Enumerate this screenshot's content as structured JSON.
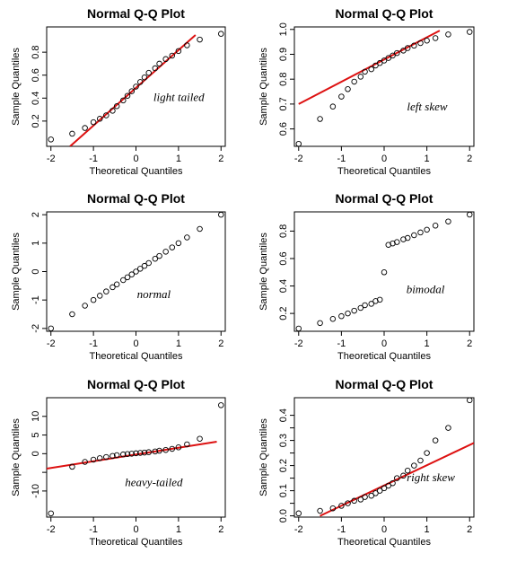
{
  "colors": {
    "reference_line": "#dd1111",
    "points": "#000000"
  },
  "chart_data": [
    {
      "type": "scatter",
      "title": "Normal Q-Q Plot",
      "xlabel": "Theoretical Quantiles",
      "ylabel": "Sample Quantiles",
      "annotation": "light tailed",
      "xlim": [
        -2.1,
        2.1
      ],
      "ylim": [
        -0.02,
        1.02
      ],
      "xticks": [
        -2,
        -1,
        0,
        1,
        2
      ],
      "yticks": [
        0.2,
        0.4,
        0.6,
        0.8
      ],
      "ytick_labels": [
        "0.2",
        "0.4",
        "0.6",
        "0.8"
      ],
      "reference_line": {
        "x": [
          -1.55,
          1.4
        ],
        "y": [
          -0.02,
          0.95
        ]
      },
      "x": [
        -2.0,
        -1.5,
        -1.2,
        -1.0,
        -0.85,
        -0.7,
        -0.55,
        -0.45,
        -0.3,
        -0.2,
        -0.1,
        0.0,
        0.1,
        0.2,
        0.3,
        0.45,
        0.55,
        0.7,
        0.85,
        1.0,
        1.2,
        1.5,
        2.0
      ],
      "y": [
        0.04,
        0.09,
        0.14,
        0.19,
        0.22,
        0.25,
        0.29,
        0.33,
        0.38,
        0.42,
        0.46,
        0.5,
        0.54,
        0.58,
        0.62,
        0.66,
        0.7,
        0.74,
        0.77,
        0.81,
        0.86,
        0.91,
        0.96
      ]
    },
    {
      "type": "scatter",
      "title": "Normal Q-Q Plot",
      "xlabel": "Theoretical Quantiles",
      "ylabel": "Sample Quantiles",
      "annotation": "left skew",
      "xlim": [
        -2.1,
        2.1
      ],
      "ylim": [
        0.53,
        1.01
      ],
      "xticks": [
        -2,
        -1,
        0,
        1,
        2
      ],
      "yticks": [
        0.6,
        0.7,
        0.8,
        0.9,
        1.0
      ],
      "ytick_labels": [
        "0.6",
        "0.7",
        "0.8",
        "0.9",
        "1.0"
      ],
      "reference_line": {
        "x": [
          -2.0,
          1.3
        ],
        "y": [
          0.7,
          0.995
        ]
      },
      "x": [
        -2.0,
        -1.5,
        -1.2,
        -1.0,
        -0.85,
        -0.7,
        -0.55,
        -0.45,
        -0.3,
        -0.2,
        -0.1,
        0.0,
        0.1,
        0.2,
        0.3,
        0.45,
        0.55,
        0.7,
        0.85,
        1.0,
        1.2,
        1.5,
        2.0
      ],
      "y": [
        0.54,
        0.64,
        0.69,
        0.73,
        0.76,
        0.79,
        0.81,
        0.83,
        0.84,
        0.855,
        0.865,
        0.875,
        0.885,
        0.895,
        0.905,
        0.915,
        0.925,
        0.935,
        0.945,
        0.955,
        0.965,
        0.98,
        0.99
      ]
    },
    {
      "type": "scatter",
      "title": "Normal Q-Q Plot",
      "xlabel": "Theoretical Quantiles",
      "ylabel": "Sample Quantiles",
      "annotation": "normal",
      "xlim": [
        -2.1,
        2.1
      ],
      "ylim": [
        -2.1,
        2.1
      ],
      "xticks": [
        -2,
        -1,
        0,
        1,
        2
      ],
      "yticks": [
        -2,
        -1,
        0,
        1,
        2
      ],
      "ytick_labels": [
        "-2",
        "-1",
        "0",
        "1",
        "2"
      ],
      "reference_line": null,
      "x": [
        -2.0,
        -1.5,
        -1.2,
        -1.0,
        -0.85,
        -0.7,
        -0.55,
        -0.45,
        -0.3,
        -0.2,
        -0.1,
        0.0,
        0.1,
        0.2,
        0.3,
        0.45,
        0.55,
        0.7,
        0.85,
        1.0,
        1.2,
        1.5,
        2.0
      ],
      "y": [
        -2.0,
        -1.5,
        -1.2,
        -1.0,
        -0.85,
        -0.7,
        -0.55,
        -0.45,
        -0.3,
        -0.2,
        -0.1,
        0.0,
        0.1,
        0.2,
        0.3,
        0.45,
        0.55,
        0.7,
        0.85,
        1.0,
        1.2,
        1.5,
        2.0
      ]
    },
    {
      "type": "scatter",
      "title": "Normal Q-Q Plot",
      "xlabel": "Theoretical Quantiles",
      "ylabel": "Sample Quantiles",
      "annotation": "bimodal",
      "xlim": [
        -2.1,
        2.1
      ],
      "ylim": [
        0.07,
        0.94
      ],
      "xticks": [
        -2,
        -1,
        0,
        1,
        2
      ],
      "yticks": [
        0.2,
        0.4,
        0.6,
        0.8
      ],
      "ytick_labels": [
        "0.2",
        "0.4",
        "0.6",
        "0.8"
      ],
      "reference_line": null,
      "x": [
        -2.0,
        -1.5,
        -1.2,
        -1.0,
        -0.85,
        -0.7,
        -0.55,
        -0.45,
        -0.3,
        -0.2,
        -0.1,
        0.0,
        0.1,
        0.2,
        0.3,
        0.45,
        0.55,
        0.7,
        0.85,
        1.0,
        1.2,
        1.5,
        2.0
      ],
      "y": [
        0.09,
        0.13,
        0.16,
        0.18,
        0.2,
        0.22,
        0.24,
        0.26,
        0.27,
        0.29,
        0.3,
        0.5,
        0.7,
        0.71,
        0.72,
        0.74,
        0.75,
        0.77,
        0.79,
        0.81,
        0.84,
        0.87,
        0.92
      ]
    },
    {
      "type": "scatter",
      "title": "Normal Q-Q Plot",
      "xlabel": "Theoretical Quantiles",
      "ylabel": "Sample Quantiles",
      "annotation": "heavy-tailed",
      "xlim": [
        -2.1,
        2.1
      ],
      "ylim": [
        -17,
        15
      ],
      "xticks": [
        -2,
        -1,
        0,
        1,
        2
      ],
      "yticks": [
        -10,
        -5,
        0,
        5,
        10
      ],
      "ytick_labels": [
        "-10",
        "",
        "0",
        "5",
        "10"
      ],
      "reference_line": {
        "x": [
          -2.1,
          1.9
        ],
        "y": [
          -4.0,
          3.2
        ]
      },
      "x": [
        -2.0,
        -1.5,
        -1.2,
        -1.0,
        -0.85,
        -0.7,
        -0.55,
        -0.45,
        -0.3,
        -0.2,
        -0.1,
        0.0,
        0.1,
        0.2,
        0.3,
        0.45,
        0.55,
        0.7,
        0.85,
        1.0,
        1.2,
        1.5,
        2.0
      ],
      "y": [
        -16.0,
        -3.5,
        -2.2,
        -1.6,
        -1.2,
        -0.9,
        -0.6,
        -0.4,
        -0.2,
        -0.1,
        0.0,
        0.1,
        0.2,
        0.3,
        0.4,
        0.6,
        0.8,
        1.0,
        1.3,
        1.7,
        2.5,
        4.0,
        13.0
      ]
    },
    {
      "type": "scatter",
      "title": "Normal Q-Q Plot",
      "xlabel": "Theoretical Quantiles",
      "ylabel": "Sample Quantiles",
      "annotation": "right skew",
      "xlim": [
        -2.1,
        2.1
      ],
      "ylim": [
        -0.005,
        0.47
      ],
      "xticks": [
        -2,
        -1,
        0,
        1,
        2
      ],
      "yticks": [
        0.0,
        0.05,
        0.1,
        0.15,
        0.2,
        0.25,
        0.3,
        0.35,
        0.4
      ],
      "ytick_labels": [
        "0.0",
        "",
        "0.1",
        "",
        "0.2",
        "",
        "0.3",
        "",
        "0.4"
      ],
      "reference_line": {
        "x": [
          -1.5,
          2.1
        ],
        "y": [
          0.0,
          0.29
        ]
      },
      "x": [
        -2.0,
        -1.5,
        -1.2,
        -1.0,
        -0.85,
        -0.7,
        -0.55,
        -0.45,
        -0.3,
        -0.2,
        -0.1,
        0.0,
        0.1,
        0.2,
        0.3,
        0.45,
        0.55,
        0.7,
        0.85,
        1.0,
        1.2,
        1.5,
        2.0
      ],
      "y": [
        0.01,
        0.02,
        0.03,
        0.04,
        0.05,
        0.06,
        0.065,
        0.075,
        0.08,
        0.09,
        0.1,
        0.11,
        0.12,
        0.13,
        0.15,
        0.16,
        0.18,
        0.2,
        0.22,
        0.25,
        0.3,
        0.35,
        0.46
      ]
    }
  ]
}
